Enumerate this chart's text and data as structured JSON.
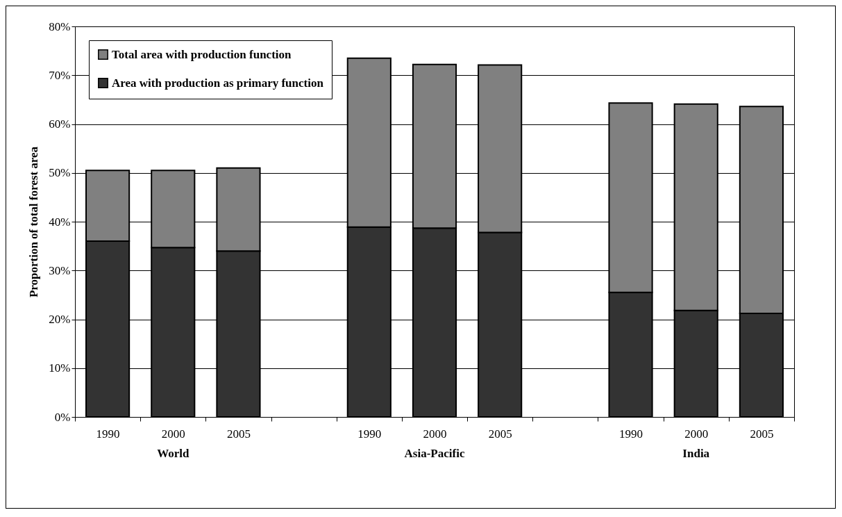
{
  "chart_data": {
    "type": "bar",
    "stacked": true,
    "ylabel": "Proportion of total forest area",
    "categories": [
      "1990",
      "2000",
      "2005",
      null,
      "1990",
      "2000",
      "2005",
      null,
      "1990",
      "2000",
      "2005"
    ],
    "series": [
      {
        "name": "Area with production as primary function",
        "color": "#333333",
        "values": [
          36,
          34.7,
          34,
          null,
          38.9,
          38.7,
          37.8,
          null,
          25.5,
          21.8,
          21.2
        ]
      },
      {
        "name": "Total area with production function",
        "color": "#808080",
        "values": [
          14.5,
          15.8,
          17,
          null,
          34.6,
          33.5,
          34.3,
          null,
          38.8,
          42.3,
          42.4
        ]
      }
    ],
    "ylim": [
      0,
      80
    ],
    "yticks": [
      {
        "value": 0,
        "label": "0%"
      },
      {
        "value": 10,
        "label": "10%"
      },
      {
        "value": 20,
        "label": "20%"
      },
      {
        "value": 30,
        "label": "30%"
      },
      {
        "value": 40,
        "label": "40%"
      },
      {
        "value": 50,
        "label": "50%"
      },
      {
        "value": 60,
        "label": "60%"
      },
      {
        "value": 70,
        "label": "70%"
      },
      {
        "value": 80,
        "label": "80%"
      }
    ],
    "grid": "y",
    "legend": "top left",
    "annotations": [
      "World",
      "Asia-Pacific",
      "India"
    ]
  }
}
